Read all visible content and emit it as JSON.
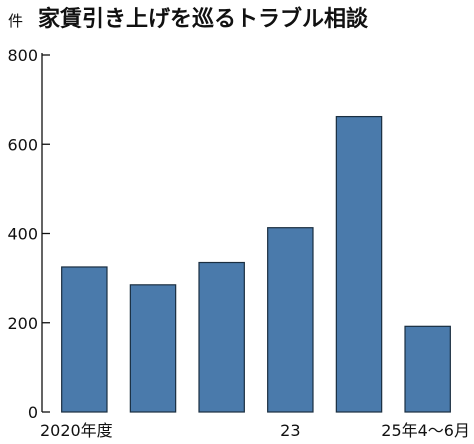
{
  "chart_data": {
    "type": "bar",
    "title": "家賃引き上げを巡るトラブル相談",
    "ylabel": "件",
    "xlabel": "",
    "categories": [
      "2020年度",
      "",
      "",
      "23",
      "",
      "25年4～6月"
    ],
    "values": [
      325,
      285,
      335,
      413,
      662,
      192
    ],
    "ylim": [
      0,
      800
    ],
    "yticks": [
      0,
      200,
      400,
      600,
      800
    ],
    "grid": false,
    "legend": "none",
    "colors": {
      "bar": "#4a7aab",
      "bar_edge": "#1a2e40",
      "axis": "#111111"
    }
  }
}
